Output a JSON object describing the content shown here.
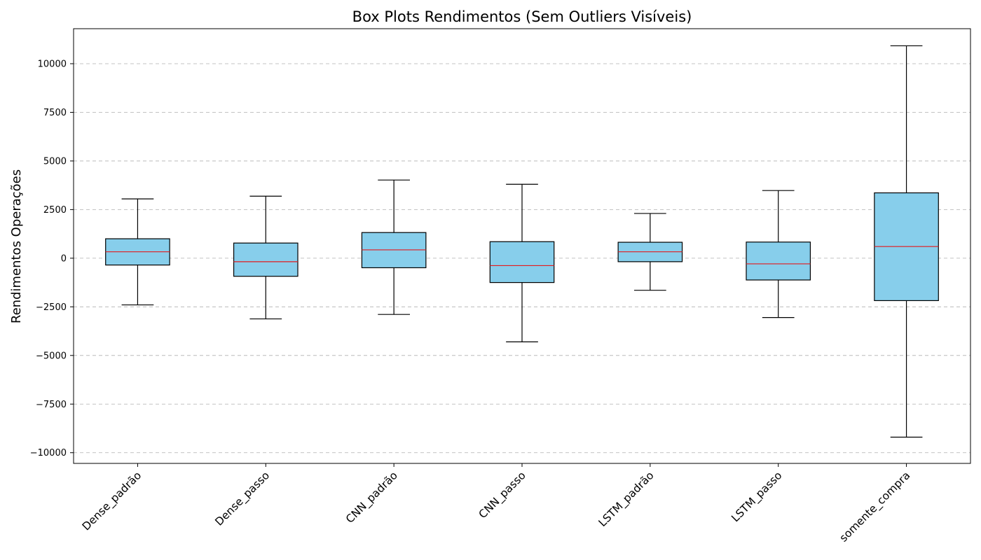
{
  "chart_data": {
    "type": "box",
    "title": "Box Plots Rendimentos (Sem Outliers Visíveis)",
    "xlabel": "",
    "ylabel": "Rendimentos Operações",
    "ylim": [
      -10550,
      11800
    ],
    "yticks": [
      -10000,
      -7500,
      -5000,
      -2500,
      0,
      2500,
      5000,
      7500,
      10000
    ],
    "grid": {
      "axis": "y",
      "style": "dashed"
    },
    "box_color": "#87CEEB",
    "median_color": "#e41a1c",
    "whisker_color": "#000000",
    "categories": [
      "Dense_padrão",
      "Dense_passo",
      "CNN_padrão",
      "CNN_passo",
      "LSTM_padrão",
      "LSTM_passo",
      "somente_compra"
    ],
    "boxes": [
      {
        "whisker_low": -2400,
        "q1": -350,
        "median": 330,
        "q3": 1000,
        "whisker_high": 3050
      },
      {
        "whisker_low": -3120,
        "q1": -930,
        "median": -180,
        "q3": 780,
        "whisker_high": 3190
      },
      {
        "whisker_low": -2890,
        "q1": -490,
        "median": 430,
        "q3": 1320,
        "whisker_high": 4020
      },
      {
        "whisker_low": -4300,
        "q1": -1250,
        "median": -380,
        "q3": 850,
        "whisker_high": 3800
      },
      {
        "whisker_low": -1650,
        "q1": -180,
        "median": 330,
        "q3": 820,
        "whisker_high": 2300
      },
      {
        "whisker_low": -3050,
        "q1": -1120,
        "median": -290,
        "q3": 830,
        "whisker_high": 3480
      },
      {
        "whisker_low": -9200,
        "q1": -2180,
        "median": 600,
        "q3": 3360,
        "whisker_high": 10920
      }
    ]
  }
}
